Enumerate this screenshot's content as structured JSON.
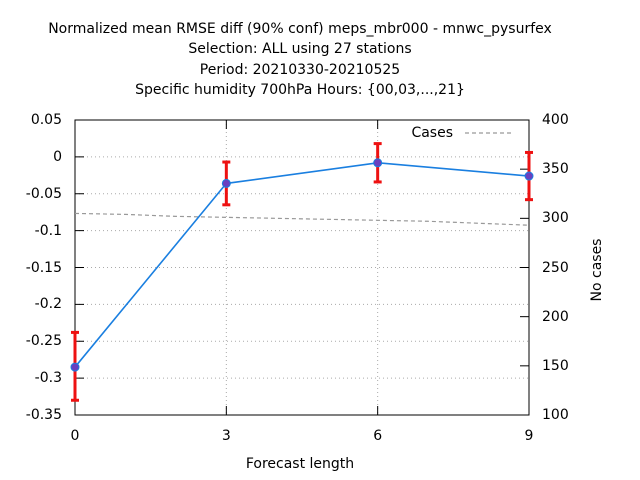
{
  "title_lines": [
    "Normalized mean RMSE diff (90% conf) meps_mbr000 - mnwc_pysurfex",
    "Selection: ALL using    27 stations",
    "Period: 20210330-20210525",
    "Specific humidity 700hPa   Hours: {00,03,...,21}"
  ],
  "colors": {
    "main_line": "#1a7fe0",
    "marker": "#6a3fbf",
    "error_bar": "#ee1111",
    "cases_line": "#999999",
    "grid": "#aaaaaa"
  },
  "chart_data": {
    "type": "line",
    "title": "Normalized mean RMSE diff (90% conf) meps_mbr000 - mnwc_pysurfex",
    "xlabel": "Forecast length",
    "ylabel": "",
    "y2label": "No cases",
    "x": [
      0,
      3,
      6,
      9
    ],
    "xlim": [
      0,
      9
    ],
    "ylim": [
      -0.35,
      0.05
    ],
    "y2lim": [
      100,
      400
    ],
    "x_ticks": [
      "0",
      "3",
      "6",
      "9"
    ],
    "y_ticks": [
      "0.05",
      "0",
      "-0.05",
      "-0.1",
      "-0.15",
      "-0.2",
      "-0.25",
      "-0.3",
      "-0.35"
    ],
    "y2_ticks": [
      "400",
      "350",
      "300",
      "250",
      "200",
      "150",
      "100"
    ],
    "grid": true,
    "legend_position": "top-right",
    "series": [
      {
        "values": [
          -0.285,
          -0.036,
          -0.008,
          -0.026
        ],
        "err_low": [
          -0.33,
          -0.065,
          -0.034,
          -0.058
        ],
        "err_high": [
          -0.238,
          -0.007,
          0.018,
          0.006
        ]
      },
      {
        "name": "Cases",
        "axis": "right",
        "x": [
          0,
          1,
          2,
          3,
          4,
          5,
          6,
          7,
          8,
          9
        ],
        "values": [
          305,
          304,
          302,
          301,
          300,
          299,
          298,
          297,
          295,
          293
        ]
      }
    ]
  }
}
